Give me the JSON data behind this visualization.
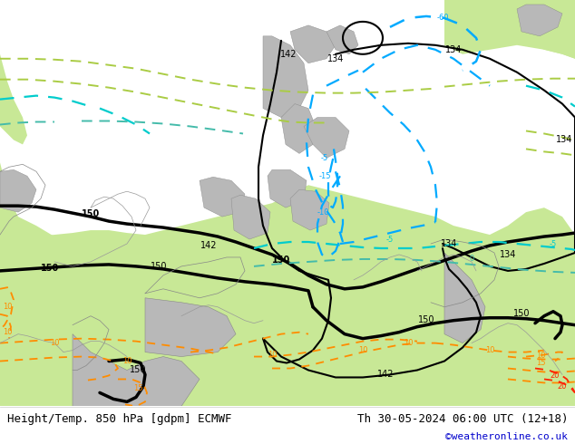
{
  "title_left": "Height/Temp. 850 hPa [gdpm] ECMWF",
  "title_right": "Th 30-05-2024 06:00 UTC (12+18)",
  "copyright": "©weatheronline.co.uk",
  "bg_color": "#d0d0d0",
  "land_green_light": "#c8e896",
  "land_gray_color": "#b8b8b8",
  "sea_color": "#d0d0d0",
  "coast_color": "#888888",
  "black": "#000000",
  "cyan": "#00cccc",
  "blue": "#00aaff",
  "lime": "#aacc44",
  "teal": "#44bbaa",
  "orange": "#ff8c00",
  "red": "#ff2200",
  "title_fontsize": 9,
  "copyright_color": "#0000cc",
  "figsize": [
    6.34,
    4.9
  ],
  "dpi": 100
}
